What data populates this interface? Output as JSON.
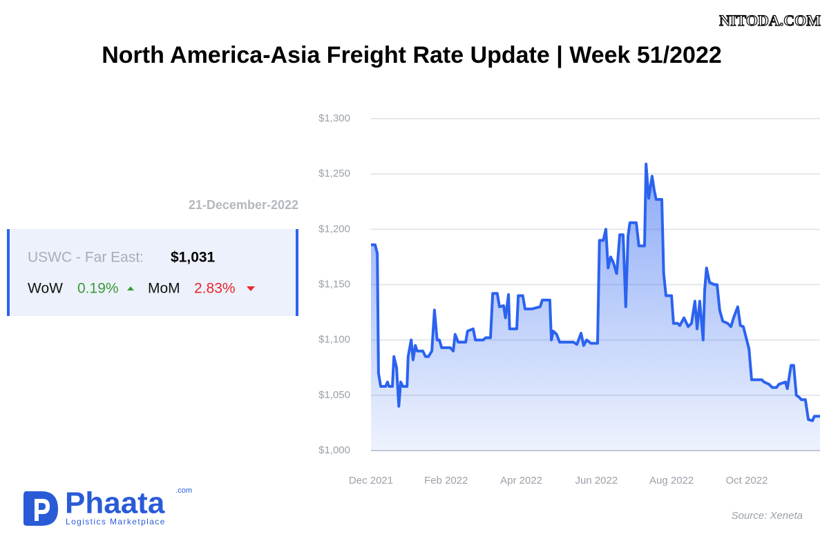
{
  "watermark": "NITODA.COM",
  "title": "North America-Asia Freight Rate Update | Week 51/2022",
  "card": {
    "date": "21-December-2022",
    "route": "USWC - Far East:",
    "rate": "$1,031",
    "wow_label": "WoW",
    "wow": "0.19%",
    "mom_label": "MoM",
    "mom": "2.83%"
  },
  "logo": {
    "name": "Phaata",
    "suffix": ".com",
    "tagline": "Logistics Marketplace"
  },
  "source": "Source: Xeneta",
  "chart_data": {
    "type": "area",
    "color": "#2b63ef",
    "grid": true,
    "x": [
      0.0,
      0.11,
      0.17,
      0.2,
      0.26,
      0.39,
      0.44,
      0.48,
      0.57,
      0.61,
      0.68,
      0.74,
      0.79,
      0.85,
      0.96,
      0.99,
      1.07,
      1.12,
      1.18,
      1.23,
      1.38,
      1.45,
      1.53,
      1.62,
      1.69,
      1.76,
      1.82,
      1.88,
      2.11,
      2.19,
      2.24,
      2.32,
      2.52,
      2.57,
      2.72,
      2.78,
      2.99,
      3.05,
      3.18,
      3.24,
      3.36,
      3.42,
      3.53,
      3.58,
      3.66,
      3.69,
      3.88,
      3.92,
      4.04,
      4.1,
      4.28,
      4.5,
      4.56,
      4.76,
      4.8,
      4.85,
      4.94,
      5.02,
      5.39,
      5.48,
      5.59,
      5.66,
      5.74,
      5.85,
      6.03,
      6.08,
      6.18,
      6.25,
      6.31,
      6.38,
      6.45,
      6.54,
      6.62,
      6.71,
      6.78,
      6.84,
      6.89,
      7.06,
      7.13,
      7.28,
      7.32,
      7.39,
      7.48,
      7.54,
      7.59,
      7.74,
      7.79,
      7.85,
      8.0,
      8.05,
      8.16,
      8.22,
      8.33,
      8.44,
      8.53,
      8.62,
      8.68,
      8.75,
      8.84,
      8.88,
      8.93,
      9.01,
      9.14,
      9.21,
      9.28,
      9.36,
      9.49,
      9.58,
      9.65,
      9.76,
      9.83,
      9.91,
      10.0,
      10.06,
      10.13,
      10.4,
      10.46,
      10.59,
      10.68,
      10.79,
      10.86,
      11.03,
      11.08,
      11.18,
      11.25,
      11.32,
      11.4,
      11.45,
      11.56,
      11.64,
      11.75,
      11.8,
      11.95
    ],
    "values": [
      1186,
      1186,
      1178,
      1070,
      1058,
      1058,
      1062,
      1058,
      1058,
      1085,
      1075,
      1040,
      1062,
      1058,
      1058,
      1085,
      1100,
      1082,
      1095,
      1090,
      1090,
      1085,
      1085,
      1090,
      1127,
      1100,
      1100,
      1093,
      1093,
      1090,
      1105,
      1098,
      1098,
      1108,
      1110,
      1100,
      1100,
      1102,
      1102,
      1142,
      1142,
      1130,
      1131,
      1120,
      1141,
      1110,
      1110,
      1140,
      1140,
      1128,
      1128,
      1130,
      1136,
      1136,
      1100,
      1108,
      1105,
      1098,
      1098,
      1096,
      1106,
      1095,
      1100,
      1097,
      1097,
      1190,
      1190,
      1200,
      1165,
      1175,
      1170,
      1160,
      1195,
      1195,
      1130,
      1194,
      1206,
      1206,
      1185,
      1185,
      1259,
      1228,
      1248,
      1235,
      1227,
      1227,
      1160,
      1140,
      1140,
      1115,
      1115,
      1113,
      1120,
      1112,
      1115,
      1135,
      1110,
      1135,
      1100,
      1145,
      1165,
      1152,
      1150,
      1150,
      1127,
      1117,
      1115,
      1112,
      1120,
      1130,
      1113,
      1112,
      1100,
      1092,
      1064,
      1064,
      1062,
      1060,
      1057,
      1057,
      1060,
      1062,
      1056,
      1077,
      1077,
      1050,
      1048,
      1046,
      1046,
      1028,
      1027,
      1031,
      1031
    ],
    "xlim": [
      0,
      11.95
    ],
    "xticks": [
      {
        "value": 0,
        "label": "Dec 2021"
      },
      {
        "value": 2,
        "label": "Feb 2022"
      },
      {
        "value": 4,
        "label": "Apr 2022"
      },
      {
        "value": 6,
        "label": "Jun 2022"
      },
      {
        "value": 8,
        "label": "Aug 2022"
      },
      {
        "value": 10,
        "label": "Oct 2022"
      }
    ],
    "ylim": [
      1000,
      1300
    ],
    "yticks": [
      {
        "value": 1000,
        "label": "$1,000"
      },
      {
        "value": 1050,
        "label": "$1,050"
      },
      {
        "value": 1100,
        "label": "$1,100"
      },
      {
        "value": 1150,
        "label": "$1,150"
      },
      {
        "value": 1200,
        "label": "$1,200"
      },
      {
        "value": 1250,
        "label": "$1,250"
      },
      {
        "value": 1300,
        "label": "$1,300"
      }
    ]
  }
}
